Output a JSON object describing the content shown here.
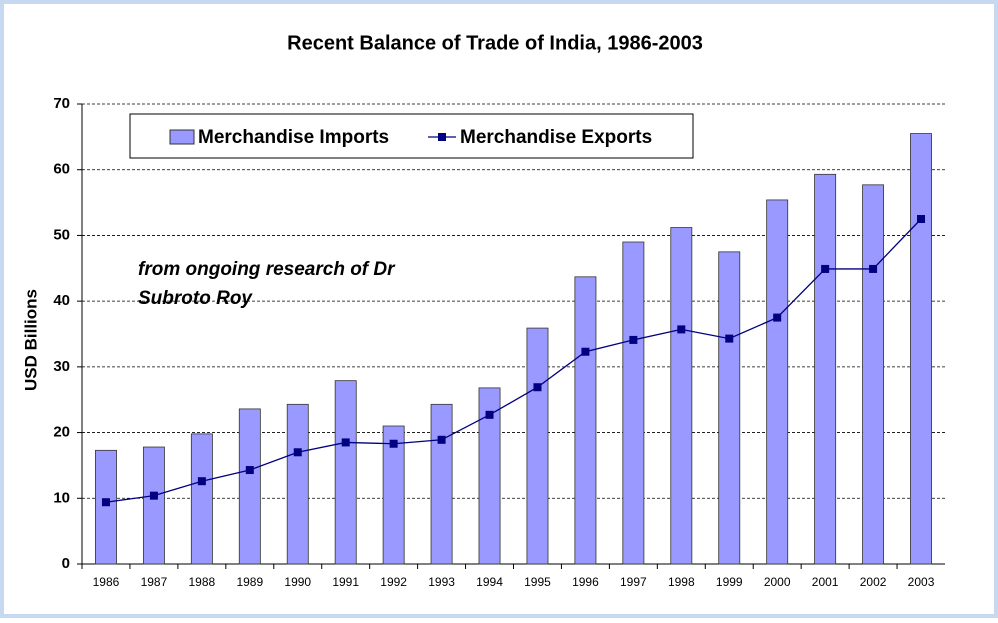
{
  "chart_data": {
    "type": "bar",
    "title": "Recent Balance of Trade of India, 1986-2003",
    "y_label": "USD Billions",
    "annotation": [
      "from ongoing research of Dr",
      "Subroto Roy"
    ],
    "categories": [
      "1986",
      "1987",
      "1988",
      "1989",
      "1990",
      "1991",
      "1992",
      "1993",
      "1994",
      "1995",
      "1996",
      "1997",
      "1998",
      "1999",
      "2000",
      "2001",
      "2002",
      "2003"
    ],
    "series": [
      {
        "name": "Merchandise Imports",
        "type": "bar",
        "color": "#9999ff",
        "values": [
          17.3,
          17.8,
          19.8,
          23.6,
          24.3,
          27.9,
          21.0,
          24.3,
          26.8,
          35.9,
          43.7,
          49.0,
          51.2,
          47.5,
          55.4,
          59.3,
          57.7,
          65.5
        ]
      },
      {
        "name": "Merchandise Exports",
        "type": "line",
        "color": "#000080",
        "values": [
          9.4,
          10.4,
          12.6,
          14.3,
          17.0,
          18.5,
          18.3,
          18.9,
          22.7,
          26.9,
          32.3,
          34.1,
          35.7,
          34.3,
          37.5,
          44.9,
          44.9,
          52.5
        ]
      }
    ],
    "ylim": [
      0,
      70
    ],
    "yticks": [
      0,
      10,
      20,
      30,
      40,
      50,
      60,
      70
    ],
    "grid": true,
    "legend": "top"
  }
}
